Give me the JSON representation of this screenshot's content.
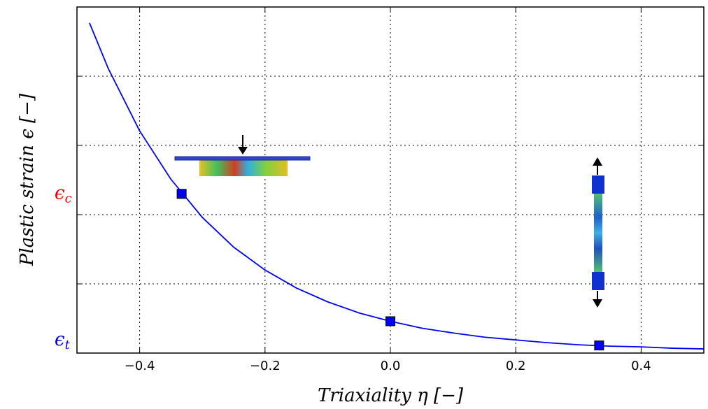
{
  "chart_data": {
    "type": "line",
    "xlabel": "Triaxiality η [−]",
    "ylabel": "Plastic strain ϵ [−]",
    "xlim": [
      -0.5,
      0.5
    ],
    "ylim": [
      0,
      5
    ],
    "xticks": [
      -0.4,
      -0.2,
      0.0,
      0.2,
      0.4
    ],
    "xtick_labels": [
      "−0.4",
      "−0.2",
      "0.0",
      "0.2",
      "0.4"
    ],
    "ygrid": [
      1,
      2,
      3,
      4
    ],
    "yticks": [
      {
        "value": 2.3,
        "label": "ϵc",
        "color": "#e00000"
      },
      {
        "value": 0.18,
        "label": "ϵt",
        "color": "#0000cc"
      }
    ],
    "grid": true,
    "series": [
      {
        "kind": "line",
        "color": "#0000ee",
        "x": [
          -0.48,
          -0.45,
          -0.4,
          -0.35,
          -0.3,
          -0.25,
          -0.2,
          -0.15,
          -0.1,
          -0.05,
          0,
          0.05,
          0.1,
          0.15,
          0.2,
          0.25,
          0.3,
          0.35,
          0.4,
          0.45,
          0.5
        ],
        "values": [
          4.77,
          4.11,
          3.21,
          2.51,
          1.96,
          1.53,
          1.2,
          0.94,
          0.74,
          0.58,
          0.46,
          0.36,
          0.29,
          0.23,
          0.19,
          0.15,
          0.12,
          0.1,
          0.09,
          0.07,
          0.06
        ]
      },
      {
        "kind": "markers",
        "color": "#0000ee",
        "x": [
          -0.333,
          0,
          0.333
        ],
        "values": [
          2.3,
          0.46,
          0.11
        ]
      }
    ]
  }
}
